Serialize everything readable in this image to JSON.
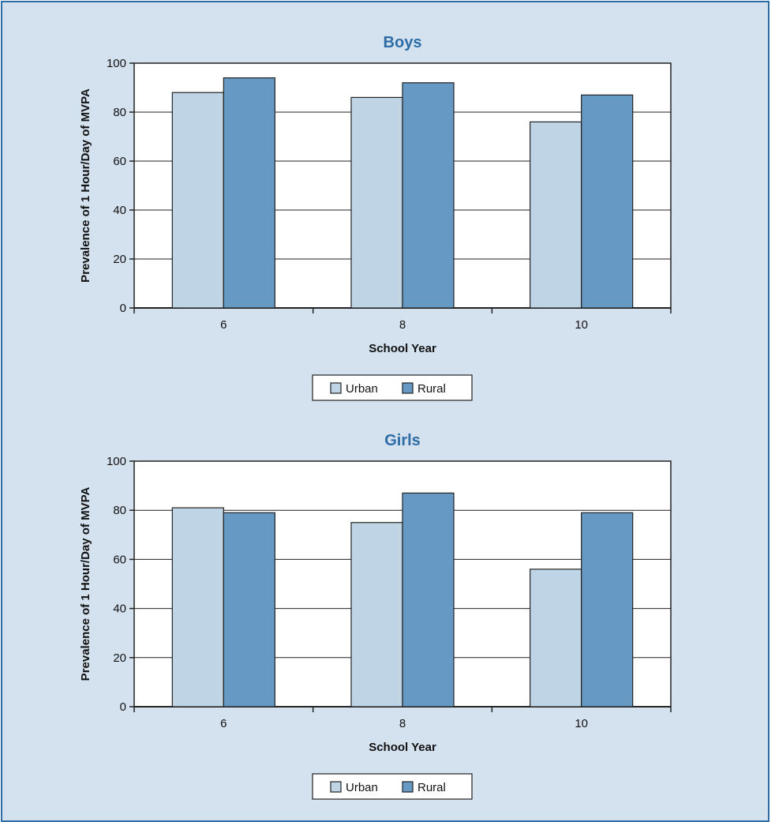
{
  "colors": {
    "urban": "#bfd5e5",
    "rural": "#6699c3",
    "title": "#2e6ca6",
    "panel_bg": "#d4e1ee"
  },
  "chart_data": [
    {
      "type": "bar",
      "title": "Boys",
      "xlabel": "School Year",
      "ylabel": "Prevalence of 1 Hour/Day of MVPA",
      "categories": [
        "6",
        "8",
        "10"
      ],
      "ylim": [
        0,
        100
      ],
      "yticks": [
        "0",
        "20",
        "40",
        "60",
        "80",
        "100"
      ],
      "grid": true,
      "legend": "bottom",
      "series": [
        {
          "name": "Urban",
          "values": [
            88,
            86,
            76
          ]
        },
        {
          "name": "Rural",
          "values": [
            94,
            92,
            87
          ]
        }
      ]
    },
    {
      "type": "bar",
      "title": "Girls",
      "xlabel": "School Year",
      "ylabel": "Prevalence of 1 Hour/Day of MVPA",
      "categories": [
        "6",
        "8",
        "10"
      ],
      "ylim": [
        0,
        100
      ],
      "yticks": [
        "0",
        "20",
        "40",
        "60",
        "80",
        "100"
      ],
      "grid": true,
      "legend": "bottom",
      "series": [
        {
          "name": "Urban",
          "values": [
            81,
            75,
            56
          ]
        },
        {
          "name": "Rural",
          "values": [
            79,
            87,
            79
          ]
        }
      ]
    }
  ]
}
